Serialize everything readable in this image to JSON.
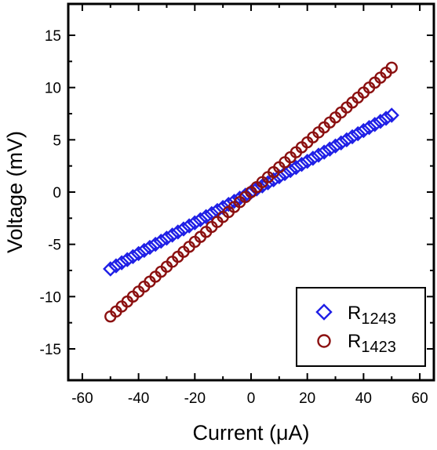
{
  "chart_data": {
    "type": "scatter",
    "xlabel": "Current (μA)",
    "ylabel": "Voltage (mV)",
    "xlim": [
      -65,
      65
    ],
    "ylim": [
      -18,
      18
    ],
    "xticks": [
      -60,
      -40,
      -20,
      0,
      20,
      40,
      60
    ],
    "yticks": [
      -15,
      -10,
      -5,
      0,
      5,
      10,
      15
    ],
    "grid": false,
    "legend_position": "bottom-right",
    "series": [
      {
        "name": "R",
        "name_sub": "1243",
        "marker": "diamond",
        "color": "#1f1fe6",
        "x_start": -50,
        "x_end": 50,
        "x_step": 2,
        "slope_mV_per_uA": 0.147
      },
      {
        "name": "R",
        "name_sub": "1423",
        "marker": "circle",
        "color": "#8b1010",
        "x_start": -50,
        "x_end": 50,
        "x_step": 2,
        "slope_mV_per_uA": 0.238
      }
    ]
  }
}
